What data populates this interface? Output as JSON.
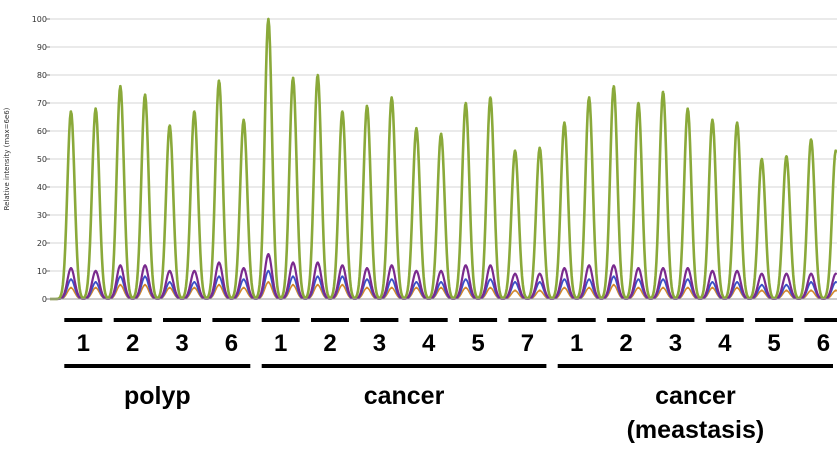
{
  "chart_data": {
    "type": "line",
    "ylabel": "Relative intensity (max=6e6)",
    "ylim": [
      0,
      100
    ],
    "y_ticks": [
      0,
      10,
      20,
      30,
      40,
      50,
      60,
      70,
      80,
      90,
      100
    ],
    "grid": true,
    "series_colors": [
      "#8aa93a",
      "#7a2a8e",
      "#3a4fc8",
      "#d2882c",
      "#3aa8a0"
    ],
    "peaks": {
      "green": [
        67,
        68,
        76,
        73,
        62,
        67,
        78,
        64,
        100,
        79,
        80,
        67,
        69,
        72,
        61,
        59,
        70,
        72,
        53,
        54,
        63,
        72,
        76,
        70,
        74,
        68,
        64,
        63,
        50,
        51,
        57,
        53
      ],
      "purple": [
        11,
        10,
        12,
        12,
        10,
        10,
        13,
        11,
        16,
        13,
        13,
        12,
        11,
        12,
        10,
        10,
        12,
        12,
        9,
        9,
        11,
        12,
        12,
        11,
        11,
        11,
        10,
        10,
        9,
        9,
        9,
        9
      ],
      "blue": [
        7,
        6,
        8,
        8,
        6,
        6,
        8,
        7,
        10,
        8,
        8,
        8,
        7,
        7,
        6,
        6,
        7,
        7,
        6,
        6,
        7,
        7,
        8,
        7,
        7,
        7,
        6,
        6,
        5,
        5,
        6,
        6
      ],
      "orange": [
        4,
        4,
        5,
        5,
        4,
        4,
        5,
        4,
        6,
        5,
        5,
        5,
        4,
        4,
        4,
        4,
        4,
        4,
        3,
        3,
        4,
        4,
        5,
        4,
        4,
        4,
        4,
        4,
        3,
        3,
        3,
        3
      ]
    },
    "samples": [
      {
        "label": "1",
        "group": "polyp"
      },
      {
        "label": "2",
        "group": "polyp"
      },
      {
        "label": "3",
        "group": "polyp"
      },
      {
        "label": "6",
        "group": "polyp"
      },
      {
        "label": "1",
        "group": "cancer"
      },
      {
        "label": "2",
        "group": "cancer"
      },
      {
        "label": "3",
        "group": "cancer"
      },
      {
        "label": "4",
        "group": "cancer"
      },
      {
        "label": "5",
        "group": "cancer"
      },
      {
        "label": "7",
        "group": "cancer"
      },
      {
        "label": "1",
        "group": "cancer (meastasis)"
      },
      {
        "label": "2",
        "group": "cancer (meastasis)"
      },
      {
        "label": "3",
        "group": "cancer (meastasis)"
      },
      {
        "label": "4",
        "group": "cancer (meastasis)"
      },
      {
        "label": "5",
        "group": "cancer (meastasis)"
      },
      {
        "label": "6",
        "group": "cancer (meastasis)"
      }
    ],
    "groups": [
      {
        "name": "polyp",
        "lines": [
          "polyp"
        ]
      },
      {
        "name": "cancer",
        "lines": [
          "cancer"
        ]
      },
      {
        "name": "cancer (meastasis)",
        "lines": [
          "cancer",
          "(meastasis)"
        ]
      }
    ]
  }
}
